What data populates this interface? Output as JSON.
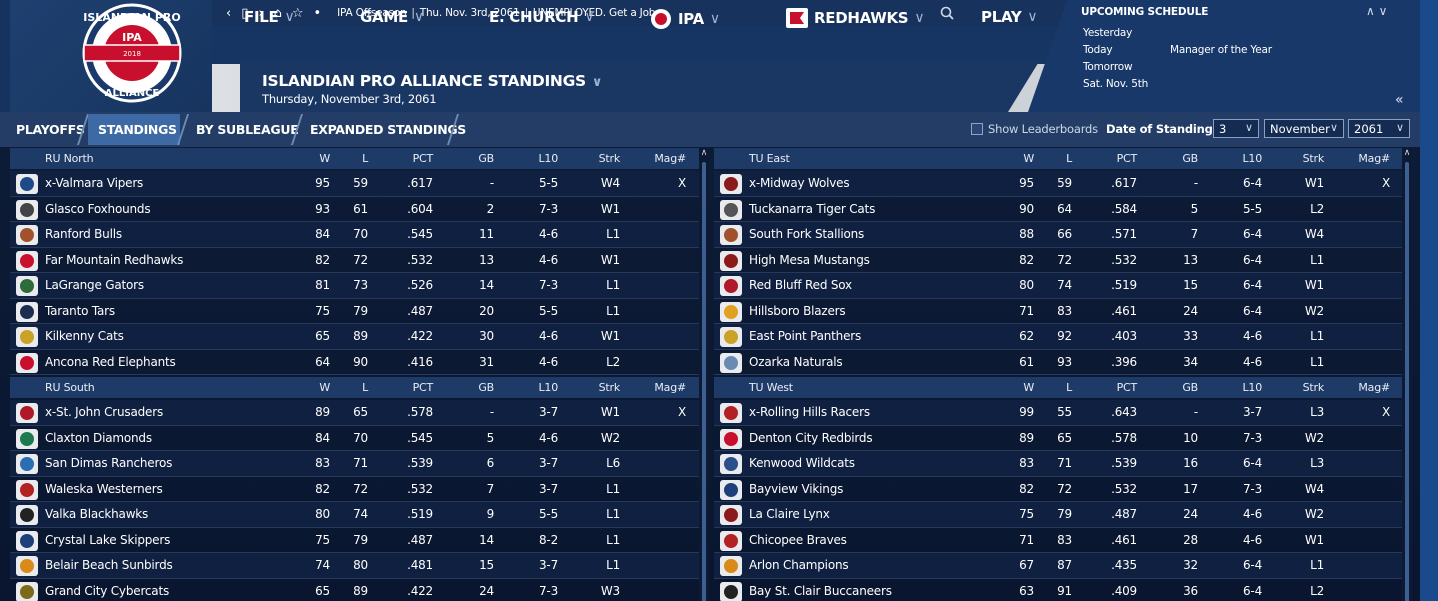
{
  "topbar": {
    "nav_back": "‹",
    "nav_page": "▯",
    "nav_forward": "›",
    "nav_home": "⌂",
    "nav_star": "☆",
    "nav_more": "•",
    "crumb1": "IPA Offseason",
    "crumb2": "Thu. Nov. 3rd, 2061",
    "crumb3": "UNEMPLOYED. Get a Job..."
  },
  "menu": [
    {
      "label": "FILE"
    },
    {
      "label": "GAME"
    },
    {
      "label": "E. CHURCH"
    },
    {
      "label": "IPA"
    },
    {
      "label": "REDHAWKS"
    },
    {
      "label": "PLAY"
    }
  ],
  "menu_chevron": "∨",
  "logo": {
    "text_top": "ISLANDIAN PRO",
    "text_mid": "IPA",
    "year": "2018",
    "text_bottom": "ALLIANCE"
  },
  "page": {
    "title": "ISLANDIAN PRO ALLIANCE STANDINGS",
    "subtitle": "Thursday, November 3rd, 2061"
  },
  "schedule": {
    "title": "UPCOMING SCHEDULE",
    "arrows": "∧ ∨",
    "collapse": "«",
    "rows": [
      {
        "day": "Yesterday",
        "event": ""
      },
      {
        "day": "Today",
        "event": "Manager of the Year"
      },
      {
        "day": "Tomorrow",
        "event": ""
      },
      {
        "day": "Sat. Nov. 5th",
        "event": ""
      }
    ]
  },
  "tabs": [
    "PLAYOFFS",
    "STANDINGS",
    "BY SUBLEAGUE",
    "EXPANDED STANDINGS"
  ],
  "controls": {
    "show_leaderboards": "Show Leaderboards",
    "date_label": "Date of Standings:",
    "day": "3",
    "month": "November",
    "year": "2061",
    "select_chevron": "∨"
  },
  "columns": [
    "W",
    "L",
    "PCT",
    "GB",
    "L10",
    "Strk",
    "Mag#"
  ],
  "divisions": [
    {
      "name": "RU North",
      "teams": [
        {
          "team": "x-Valmara Vipers",
          "w": "95",
          "l": "59",
          "pct": ".617",
          "gb": "-",
          "l10": "5-5",
          "strk": "W4",
          "mag": "X",
          "color": "#1f4a8a"
        },
        {
          "team": "Glasco Foxhounds",
          "w": "93",
          "l": "61",
          "pct": ".604",
          "gb": "2",
          "l10": "7-3",
          "strk": "W1",
          "mag": "",
          "color": "#444444"
        },
        {
          "team": "Ranford Bulls",
          "w": "84",
          "l": "70",
          "pct": ".545",
          "gb": "11",
          "l10": "4-6",
          "strk": "L1",
          "mag": "",
          "color": "#a0522d"
        },
        {
          "team": "Far Mountain Redhawks",
          "w": "82",
          "l": "72",
          "pct": ".532",
          "gb": "13",
          "l10": "4-6",
          "strk": "W1",
          "mag": "",
          "color": "#c8102e"
        },
        {
          "team": "LaGrange Gators",
          "w": "81",
          "l": "73",
          "pct": ".526",
          "gb": "14",
          "l10": "7-3",
          "strk": "L1",
          "mag": "",
          "color": "#2e6b3a"
        },
        {
          "team": "Taranto Tars",
          "w": "75",
          "l": "79",
          "pct": ".487",
          "gb": "20",
          "l10": "5-5",
          "strk": "L1",
          "mag": "",
          "color": "#1c2d4f"
        },
        {
          "team": "Kilkenny Cats",
          "w": "65",
          "l": "89",
          "pct": ".422",
          "gb": "30",
          "l10": "4-6",
          "strk": "W1",
          "mag": "",
          "color": "#c9a227"
        },
        {
          "team": "Ancona Red Elephants",
          "w": "64",
          "l": "90",
          "pct": ".416",
          "gb": "31",
          "l10": "4-6",
          "strk": "L2",
          "mag": "",
          "color": "#c8102e"
        }
      ]
    },
    {
      "name": "RU South",
      "teams": [
        {
          "team": "x-St. John Crusaders",
          "w": "89",
          "l": "65",
          "pct": ".578",
          "gb": "-",
          "l10": "3-7",
          "strk": "W1",
          "mag": "X",
          "color": "#b0182a"
        },
        {
          "team": "Claxton Diamonds",
          "w": "84",
          "l": "70",
          "pct": ".545",
          "gb": "5",
          "l10": "4-6",
          "strk": "W2",
          "mag": "",
          "color": "#1d7a4f"
        },
        {
          "team": "San Dimas Rancheros",
          "w": "83",
          "l": "71",
          "pct": ".539",
          "gb": "6",
          "l10": "3-7",
          "strk": "L6",
          "mag": "",
          "color": "#2a6db3"
        },
        {
          "team": "Waleska Westerners",
          "w": "82",
          "l": "72",
          "pct": ".532",
          "gb": "7",
          "l10": "3-7",
          "strk": "L1",
          "mag": "",
          "color": "#b22222"
        },
        {
          "team": "Valka Blackhawks",
          "w": "80",
          "l": "74",
          "pct": ".519",
          "gb": "9",
          "l10": "5-5",
          "strk": "L1",
          "mag": "",
          "color": "#222222"
        },
        {
          "team": "Crystal Lake Skippers",
          "w": "75",
          "l": "79",
          "pct": ".487",
          "gb": "14",
          "l10": "8-2",
          "strk": "L1",
          "mag": "",
          "color": "#1f3f7a"
        },
        {
          "team": "Belair Beach Sunbirds",
          "w": "74",
          "l": "80",
          "pct": ".481",
          "gb": "15",
          "l10": "3-7",
          "strk": "L1",
          "mag": "",
          "color": "#d98a1a"
        },
        {
          "team": "Grand City Cybercats",
          "w": "65",
          "l": "89",
          "pct": ".422",
          "gb": "24",
          "l10": "7-3",
          "strk": "W3",
          "mag": "",
          "color": "#7a6a1a"
        }
      ]
    },
    {
      "name": "TU East",
      "teams": [
        {
          "team": "x-Midway Wolves",
          "w": "95",
          "l": "59",
          "pct": ".617",
          "gb": "-",
          "l10": "6-4",
          "strk": "W1",
          "mag": "X",
          "color": "#8b1a1a"
        },
        {
          "team": "Tuckanarra Tiger Cats",
          "w": "90",
          "l": "64",
          "pct": ".584",
          "gb": "5",
          "l10": "5-5",
          "strk": "L2",
          "mag": "",
          "color": "#555555"
        },
        {
          "team": "South Fork Stallions",
          "w": "88",
          "l": "66",
          "pct": ".571",
          "gb": "7",
          "l10": "6-4",
          "strk": "W4",
          "mag": "",
          "color": "#a0522d"
        },
        {
          "team": "High Mesa Mustangs",
          "w": "82",
          "l": "72",
          "pct": ".532",
          "gb": "13",
          "l10": "6-4",
          "strk": "L1",
          "mag": "",
          "color": "#8b1a1a"
        },
        {
          "team": "Red Bluff Red Sox",
          "w": "80",
          "l": "74",
          "pct": ".519",
          "gb": "15",
          "l10": "6-4",
          "strk": "W1",
          "mag": "",
          "color": "#b0182a"
        },
        {
          "team": "Hillsboro Blazers",
          "w": "71",
          "l": "83",
          "pct": ".461",
          "gb": "24",
          "l10": "6-4",
          "strk": "W2",
          "mag": "",
          "color": "#e0a020"
        },
        {
          "team": "East Point Panthers",
          "w": "62",
          "l": "92",
          "pct": ".403",
          "gb": "33",
          "l10": "4-6",
          "strk": "L1",
          "mag": "",
          "color": "#c9a227"
        },
        {
          "team": "Ozarka Naturals",
          "w": "61",
          "l": "93",
          "pct": ".396",
          "gb": "34",
          "l10": "4-6",
          "strk": "L1",
          "mag": "",
          "color": "#6a8ab3"
        }
      ]
    },
    {
      "name": "TU West",
      "teams": [
        {
          "team": "x-Rolling Hills Racers",
          "w": "99",
          "l": "55",
          "pct": ".643",
          "gb": "-",
          "l10": "3-7",
          "strk": "L3",
          "mag": "X",
          "color": "#b22222"
        },
        {
          "team": "Denton City Redbirds",
          "w": "89",
          "l": "65",
          "pct": ".578",
          "gb": "10",
          "l10": "7-3",
          "strk": "W2",
          "mag": "",
          "color": "#c8102e"
        },
        {
          "team": "Kenwood Wildcats",
          "w": "83",
          "l": "71",
          "pct": ".539",
          "gb": "16",
          "l10": "6-4",
          "strk": "L3",
          "mag": "",
          "color": "#2a4f8a"
        },
        {
          "team": "Bayview Vikings",
          "w": "82",
          "l": "72",
          "pct": ".532",
          "gb": "17",
          "l10": "7-3",
          "strk": "W4",
          "mag": "",
          "color": "#1f3f7a"
        },
        {
          "team": "La Claire Lynx",
          "w": "75",
          "l": "79",
          "pct": ".487",
          "gb": "24",
          "l10": "4-6",
          "strk": "W2",
          "mag": "",
          "color": "#8b1a1a"
        },
        {
          "team": "Chicopee Braves",
          "w": "71",
          "l": "83",
          "pct": ".461",
          "gb": "28",
          "l10": "4-6",
          "strk": "W1",
          "mag": "",
          "color": "#b22222"
        },
        {
          "team": "Arlon Champions",
          "w": "67",
          "l": "87",
          "pct": ".435",
          "gb": "32",
          "l10": "6-4",
          "strk": "L1",
          "mag": "",
          "color": "#d98a1a"
        },
        {
          "team": "Bay St. Clair Buccaneers",
          "w": "63",
          "l": "91",
          "pct": ".409",
          "gb": "36",
          "l10": "6-4",
          "strk": "L2",
          "mag": "",
          "color": "#222222"
        }
      ]
    }
  ],
  "colors": {
    "accent": "#3d6aa5",
    "header": "#16325e",
    "rowbg": "#0f2040"
  }
}
